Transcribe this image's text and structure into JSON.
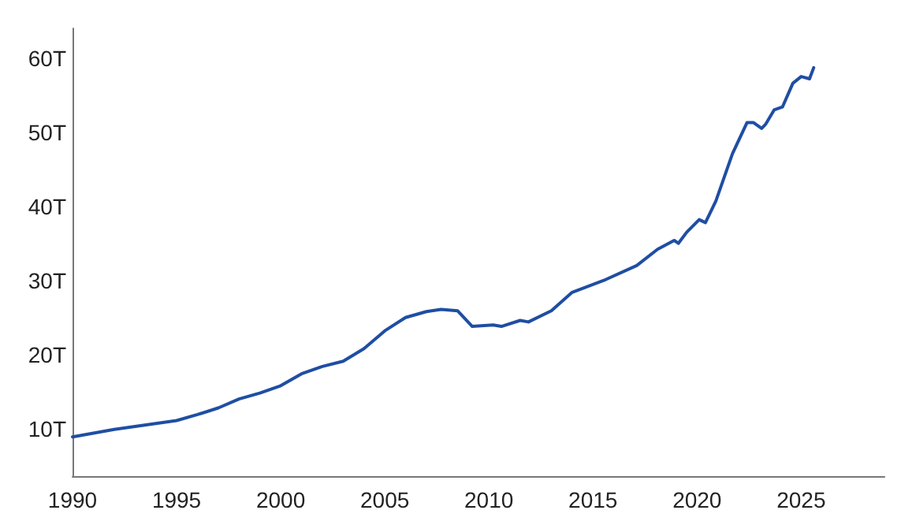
{
  "chart_data": {
    "type": "line",
    "grid": false,
    "marker": "none",
    "line_style": "solid",
    "x": [
      1990,
      1992,
      1995,
      1996,
      1997,
      1998,
      1999,
      2000,
      2001,
      2002,
      2003,
      2004,
      2005,
      2006,
      2007,
      2007.7,
      2008.5,
      2009.2,
      2010.2,
      2010.6,
      2011.5,
      2011.9,
      2013,
      2014,
      2015.6,
      2017.1,
      2018.1,
      2018.9,
      2019.1,
      2019.5,
      2020.1,
      2020.4,
      2020.9,
      2021.7,
      2022.4,
      2022.7,
      2023.1,
      2023.3,
      2023.7,
      2024.1,
      2024.6,
      2025,
      2025.4,
      2025.6
    ],
    "series": [
      {
        "color": "#1f4ea3",
        "values": [
          8.9,
          9.9,
          11.1,
          11.9,
          12.8,
          14.0,
          14.8,
          15.8,
          17.4,
          18.4,
          19.1,
          20.8,
          23.2,
          25.0,
          25.8,
          26.1,
          25.9,
          23.8,
          24.0,
          23.8,
          24.6,
          24.4,
          25.9,
          28.4,
          30.1,
          32.0,
          34.2,
          35.4,
          35.0,
          36.5,
          38.2,
          37.8,
          40.7,
          47.1,
          51.3,
          51.3,
          50.5,
          51.1,
          53.0,
          53.4,
          56.6,
          57.5,
          57.2,
          58.7
        ]
      }
    ],
    "xlim": [
      1990,
      2029
    ],
    "xticks": [
      1990,
      1995,
      2000,
      2005,
      2010,
      2015,
      2020,
      2025
    ],
    "ylim": [
      3.6,
      64
    ],
    "yticks": [
      {
        "value": 10,
        "label": "10T"
      },
      {
        "value": 20,
        "label": "20T"
      },
      {
        "value": 30,
        "label": "30T"
      },
      {
        "value": 40,
        "label": "40T"
      },
      {
        "value": 50,
        "label": "50T"
      },
      {
        "value": 60,
        "label": "60T"
      }
    ]
  }
}
